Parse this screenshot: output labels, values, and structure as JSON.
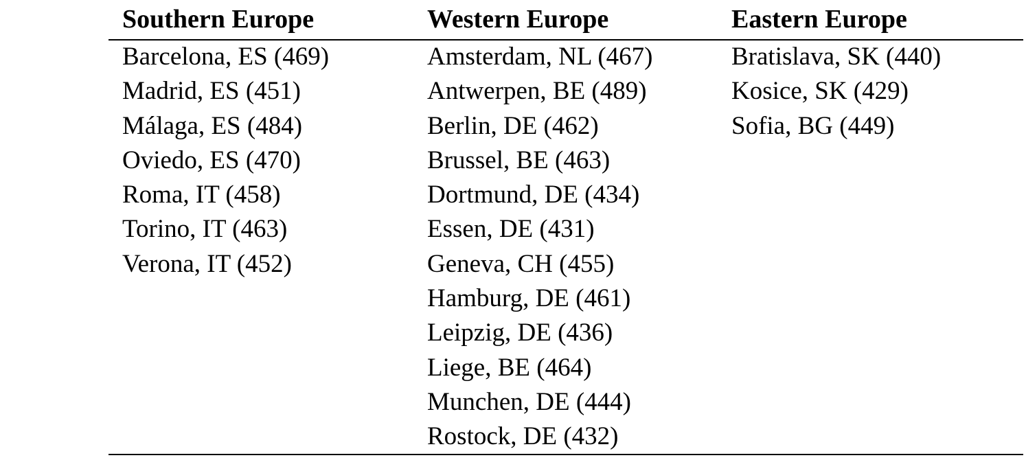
{
  "table": {
    "headers": [
      "Southern Europe",
      "Western Europe",
      "Eastern Europe"
    ],
    "columns": [
      [
        "Barcelona, ES (469)",
        "Madrid, ES (451)",
        "Málaga, ES (484)",
        "Oviedo, ES (470)",
        "Roma, IT (458)",
        "Torino, IT (463)",
        "Verona, IT (452)"
      ],
      [
        "Amsterdam, NL (467)",
        "Antwerpen, BE (489)",
        "Berlin, DE (462)",
        "Brussel, BE (463)",
        "Dortmund, DE (434)",
        "Essen, DE (431)",
        "Geneva, CH (455)",
        "Hamburg, DE (461)",
        "Leipzig, DE (436)",
        "Liege, BE (464)",
        "Munchen, DE (444)",
        "Rostock, DE (432)"
      ],
      [
        "Bratislava, SK (440)",
        "Kosice, SK (429)",
        "Sofia, BG (449)"
      ]
    ]
  }
}
